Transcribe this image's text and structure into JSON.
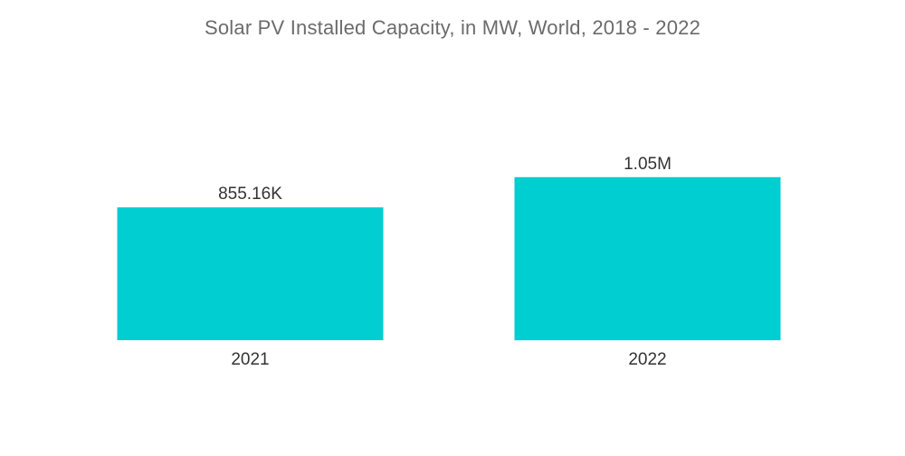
{
  "chart_data": {
    "type": "bar",
    "title": "Solar PV Installed Capacity, in MW, World, 2018 - 2022",
    "categories": [
      "2021",
      "2022"
    ],
    "values": [
      855160,
      1050000
    ],
    "data_labels": [
      "855.16K",
      "1.05M"
    ],
    "xlabel": "",
    "ylabel": "",
    "ylim": [
      0,
      1200000
    ],
    "grid": false,
    "legend": "none",
    "bar_color": "#00CED1"
  }
}
